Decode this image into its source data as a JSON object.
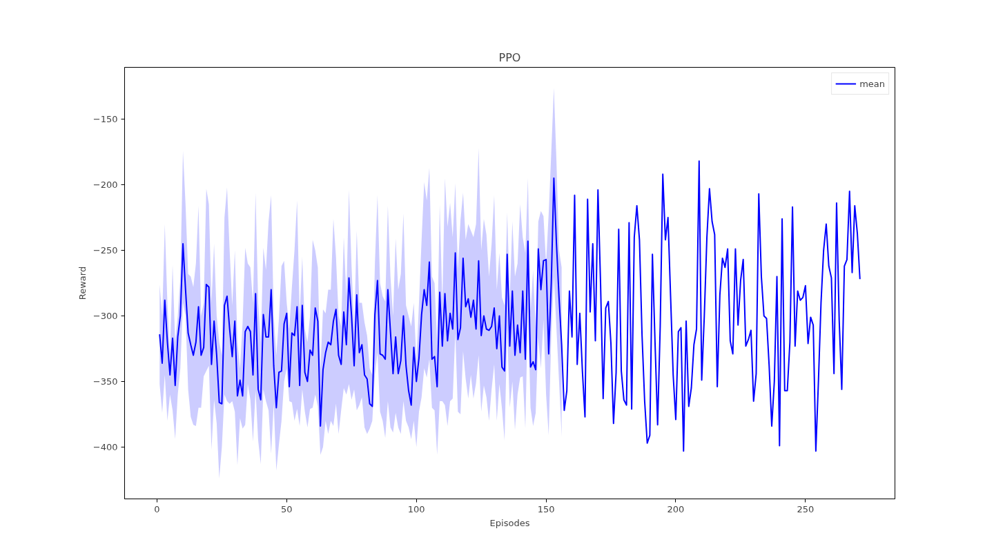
{
  "chart_data": {
    "type": "line",
    "title": "PPO",
    "xlabel": "Episodes",
    "ylabel": "Reward",
    "x": [
      1,
      2,
      3,
      4,
      5,
      6,
      7,
      8,
      9,
      10,
      11,
      12,
      13,
      14,
      15,
      16,
      17,
      18,
      19,
      20,
      21,
      22,
      23,
      24,
      25,
      26,
      27,
      28,
      29,
      30,
      31,
      32,
      33,
      34,
      35,
      36,
      37,
      38,
      39,
      40,
      41,
      42,
      43,
      44,
      45,
      46,
      47,
      48,
      49,
      50,
      51,
      52,
      53,
      54,
      55,
      56,
      57,
      58,
      59,
      60,
      61,
      62,
      63,
      64,
      65,
      66,
      67,
      68,
      69,
      70,
      71,
      72,
      73,
      74,
      75,
      76,
      77,
      78,
      79,
      80,
      81,
      82,
      83,
      84,
      85,
      86,
      87,
      88,
      89,
      90,
      91,
      92,
      93,
      94,
      95,
      96,
      97,
      98,
      99,
      100,
      101,
      102,
      103,
      104,
      105,
      106,
      107,
      108,
      109,
      110,
      111,
      112,
      113,
      114,
      115,
      116,
      117,
      118,
      119,
      120,
      121,
      122,
      123,
      124,
      125,
      126,
      127,
      128,
      129,
      130,
      131,
      132,
      133,
      134,
      135,
      136,
      137,
      138,
      139,
      140,
      141,
      142,
      143,
      144,
      145,
      146,
      147,
      148,
      149,
      150,
      151,
      152,
      153,
      154,
      155,
      156,
      157,
      158,
      159,
      160,
      161,
      162,
      163,
      164,
      165,
      166,
      167,
      168,
      169,
      170,
      171,
      172,
      173,
      174,
      175,
      176,
      177,
      178,
      179,
      180,
      181,
      182,
      183,
      184,
      185,
      186,
      187,
      188,
      189,
      190,
      191,
      192,
      193,
      194,
      195,
      196,
      197,
      198,
      199,
      200,
      201,
      202,
      203,
      204,
      205,
      206,
      207,
      208,
      209,
      210,
      211,
      212,
      213,
      214,
      215,
      216,
      217,
      218,
      219,
      220,
      221,
      222,
      223,
      224,
      225,
      226,
      227,
      228,
      229,
      230,
      231,
      232,
      233,
      234,
      235,
      236,
      237,
      238,
      239,
      240,
      241,
      242,
      243,
      244,
      245,
      246,
      247,
      248,
      249,
      250,
      251,
      252,
      253,
      254,
      255,
      256,
      257,
      258,
      259,
      260,
      261,
      262,
      263,
      264,
      265,
      266,
      267,
      268,
      269,
      270,
      271
    ],
    "series": [
      {
        "name": "mean",
        "color": "#0000ff",
        "values": [
          -314,
          -336,
          -288,
          -320,
          -345,
          -317,
          -353,
          -316,
          -300,
          -245,
          -280,
          -313,
          -322,
          -330,
          -320,
          -293,
          -330,
          -324,
          -276,
          -278,
          -337,
          -304,
          -330,
          -366,
          -367,
          -292,
          -285,
          -310,
          -331,
          -304,
          -361,
          -349,
          -361,
          -312,
          -308,
          -312,
          -345,
          -283,
          -356,
          -364,
          -299,
          -316,
          -316,
          -280,
          -338,
          -370,
          -343,
          -342,
          -306,
          -298,
          -354,
          -313,
          -315,
          -293,
          -353,
          -292,
          -343,
          -350,
          -326,
          -330,
          -294,
          -304,
          -384,
          -341,
          -328,
          -320,
          -322,
          -304,
          -295,
          -330,
          -337,
          -297,
          -322,
          -271,
          -300,
          -338,
          -284,
          -328,
          -322,
          -345,
          -348,
          -367,
          -369,
          -299,
          -273,
          -329,
          -330,
          -333,
          -280,
          -312,
          -344,
          -316,
          -344,
          -334,
          -300,
          -338,
          -357,
          -368,
          -324,
          -350,
          -332,
          -299,
          -280,
          -292,
          -259,
          -333,
          -331,
          -354,
          -282,
          -323,
          -283,
          -319,
          -298,
          -310,
          -252,
          -318,
          -309,
          -256,
          -293,
          -287,
          -301,
          -288,
          -310,
          -258,
          -315,
          -300,
          -310,
          -311,
          -308,
          -294,
          -325,
          -300,
          -339,
          -342,
          -253,
          -323,
          -281,
          -330,
          -307,
          -328,
          -281,
          -333,
          -243,
          -339,
          -335,
          -341,
          -249,
          -280,
          -258,
          -257,
          -329,
          -275,
          -195,
          -245,
          -286,
          -322,
          -372,
          -357,
          -281,
          -316,
          -208,
          -337,
          -298,
          -342,
          -377,
          -211,
          -297,
          -245,
          -319,
          -204,
          -275,
          -363,
          -294,
          -289,
          -321,
          -382,
          -343,
          -234,
          -342,
          -364,
          -368,
          -229,
          -371,
          -240,
          -216,
          -242,
          -315,
          -365,
          -397,
          -391,
          -253,
          -320,
          -383,
          -308,
          -192,
          -242,
          -225,
          -285,
          -345,
          -379,
          -312,
          -309,
          -403,
          -304,
          -369,
          -355,
          -322,
          -310,
          -182,
          -349,
          -300,
          -240,
          -203,
          -228,
          -238,
          -354,
          -284,
          -256,
          -263,
          -249,
          -319,
          -329,
          -249,
          -307,
          -273,
          -257,
          -323,
          -318,
          -311,
          -365,
          -344,
          -207,
          -270,
          -300,
          -302,
          -338,
          -384,
          -350,
          -270,
          -399,
          -226,
          -357,
          -357,
          -320,
          -217,
          -323,
          -281,
          -288,
          -286,
          -277,
          -321,
          -301,
          -307,
          -403,
          -350,
          -290,
          -250,
          -230,
          -262,
          -271,
          -344,
          -214,
          -303,
          -356,
          -262,
          -257,
          -205,
          -267,
          -216,
          -237,
          -272
        ],
        "upper": [
          -276,
          -300,
          -230,
          -290,
          -330,
          -261,
          -320,
          -300,
          -270,
          -174,
          -215,
          -268,
          -270,
          -278,
          -260,
          -216,
          -300,
          -290,
          -203,
          -215,
          -290,
          -245,
          -300,
          -320,
          -330,
          -225,
          -202,
          -250,
          -292,
          -250,
          -320,
          -340,
          -305,
          -248,
          -260,
          -263,
          -290,
          -206,
          -290,
          -320,
          -248,
          -265,
          -228,
          -208,
          -300,
          -330,
          -302,
          -262,
          -258,
          -290,
          -310,
          -278,
          -250,
          -212,
          -300,
          -255,
          -310,
          -320,
          -300,
          -242,
          -250,
          -263,
          -340,
          -295,
          -298,
          -280,
          -280,
          -226,
          -255,
          -300,
          -308,
          -240,
          -285,
          -204,
          -262,
          -310,
          -235,
          -290,
          -290,
          -305,
          -315,
          -340,
          -345,
          -260,
          -208,
          -275,
          -285,
          -289,
          -216,
          -270,
          -300,
          -241,
          -280,
          -268,
          -222,
          -292,
          -300,
          -308,
          -290,
          -335,
          -290,
          -242,
          -198,
          -212,
          -187,
          -270,
          -275,
          -320,
          -215,
          -290,
          -195,
          -232,
          -214,
          -240,
          -199,
          -264,
          -227,
          -206,
          -242,
          -230,
          -235,
          -240,
          -230,
          -172,
          -250,
          -226,
          -238,
          -270,
          -245,
          -208,
          -280,
          -252,
          -286,
          -292,
          -221,
          -286,
          -228,
          -270,
          -260,
          -215,
          -240,
          -252,
          -195,
          -297,
          -265,
          -310,
          -228,
          -220,
          -224,
          -260,
          -222,
          -175,
          -126,
          -182,
          -250,
          -263,
          null,
          null,
          null,
          null,
          null,
          null,
          null,
          null,
          null,
          null,
          null,
          null,
          null,
          null,
          null,
          null,
          null,
          null,
          null,
          null,
          null,
          null,
          null,
          null,
          null,
          null,
          null,
          null,
          null,
          null,
          null,
          null,
          null,
          null,
          null,
          null,
          null,
          null,
          null,
          null,
          null,
          null,
          null,
          null,
          null,
          null,
          null,
          null,
          null,
          null,
          null,
          null,
          null,
          null,
          null,
          null,
          null,
          null,
          null,
          null,
          null,
          null,
          null,
          null,
          null,
          null,
          null,
          null,
          null,
          null,
          null,
          null,
          null,
          null,
          null,
          null,
          null,
          null,
          null,
          null,
          null,
          null,
          null,
          null,
          null,
          null,
          null,
          null,
          null,
          null,
          null,
          null,
          null,
          null,
          null,
          null,
          null,
          null,
          null,
          null,
          null,
          null,
          null,
          null,
          null,
          null,
          null,
          null,
          null,
          null,
          null,
          null,
          null,
          null,
          null
        ],
        "lower": [
          -352,
          -374,
          -345,
          -380,
          -360,
          -372,
          -394,
          -360,
          -340,
          -290,
          -300,
          -356,
          -377,
          -383,
          -384,
          -370,
          -370,
          -346,
          -342,
          -338,
          -402,
          -364,
          -382,
          -424,
          -400,
          -360,
          -365,
          -367,
          -365,
          -373,
          -414,
          -378,
          -386,
          -383,
          -352,
          -364,
          -396,
          -357,
          -395,
          -413,
          -356,
          -365,
          -372,
          -405,
          -367,
          -418,
          -398,
          -380,
          -350,
          -340,
          -365,
          -366,
          -380,
          -371,
          -384,
          -356,
          -373,
          -385,
          -371,
          -370,
          -360,
          -369,
          -406,
          -400,
          -380,
          -390,
          -380,
          -384,
          -367,
          -390,
          -372,
          -355,
          -360,
          -352,
          -364,
          -356,
          -372,
          -368,
          -362,
          -385,
          -390,
          -386,
          -380,
          -345,
          -328,
          -373,
          -380,
          -393,
          -365,
          -385,
          -389,
          -374,
          -385,
          -390,
          -365,
          -380,
          -385,
          -394,
          -380,
          -400,
          -373,
          -362,
          -340,
          -347,
          -333,
          -370,
          -372,
          -406,
          -365,
          -365,
          -368,
          -384,
          -365,
          -363,
          -313,
          -373,
          -375,
          -327,
          -348,
          -363,
          -345,
          -363,
          -351,
          -330,
          -373,
          -353,
          -362,
          -380,
          -356,
          -337,
          -380,
          -352,
          -371,
          -395,
          -310,
          -370,
          -350,
          -387,
          -360,
          -347,
          -346,
          -386,
          -295,
          -370,
          -384,
          -374,
          -317,
          -340,
          -303,
          -360,
          -391,
          -315,
          -270,
          -310,
          -350,
          -392,
          null,
          null,
          null,
          null,
          null,
          null,
          null,
          null,
          null,
          null,
          null,
          null,
          null,
          null,
          null,
          null,
          null,
          null,
          null,
          null,
          null,
          null,
          null,
          null,
          null,
          null,
          null,
          null,
          null,
          null,
          null,
          null,
          null,
          null,
          null,
          null,
          null,
          null,
          null,
          null,
          null,
          null,
          null,
          null,
          null,
          null,
          null,
          null,
          null,
          null,
          null,
          null,
          null,
          null,
          null,
          null,
          null,
          null,
          null,
          null,
          null,
          null,
          null,
          null,
          null,
          null,
          null,
          null,
          null,
          null,
          null,
          null,
          null,
          null,
          null,
          null,
          null,
          null,
          null,
          null,
          null,
          null,
          null,
          null,
          null,
          null,
          null,
          null,
          null,
          null,
          null,
          null,
          null,
          null,
          null,
          null,
          null,
          null,
          null,
          null,
          null,
          null,
          null,
          null,
          null,
          null,
          null,
          null,
          null,
          null,
          null,
          null,
          null,
          null,
          null
        ]
      }
    ],
    "xlim": [
      -12.5,
      284.5
    ],
    "ylim": [
      -439.5,
      -110.5
    ],
    "xticks": [
      0,
      50,
      100,
      150,
      200,
      250
    ],
    "yticks": [
      {
        "value": -400,
        "label": "−400"
      },
      {
        "value": -350,
        "label": "−350"
      },
      {
        "value": -300,
        "label": "−300"
      },
      {
        "value": -250,
        "label": "−250"
      },
      {
        "value": -200,
        "label": "−200"
      },
      {
        "value": -150,
        "label": "−150"
      }
    ],
    "grid": false,
    "legend": "top right",
    "line_style": "solid",
    "marker": "none"
  }
}
